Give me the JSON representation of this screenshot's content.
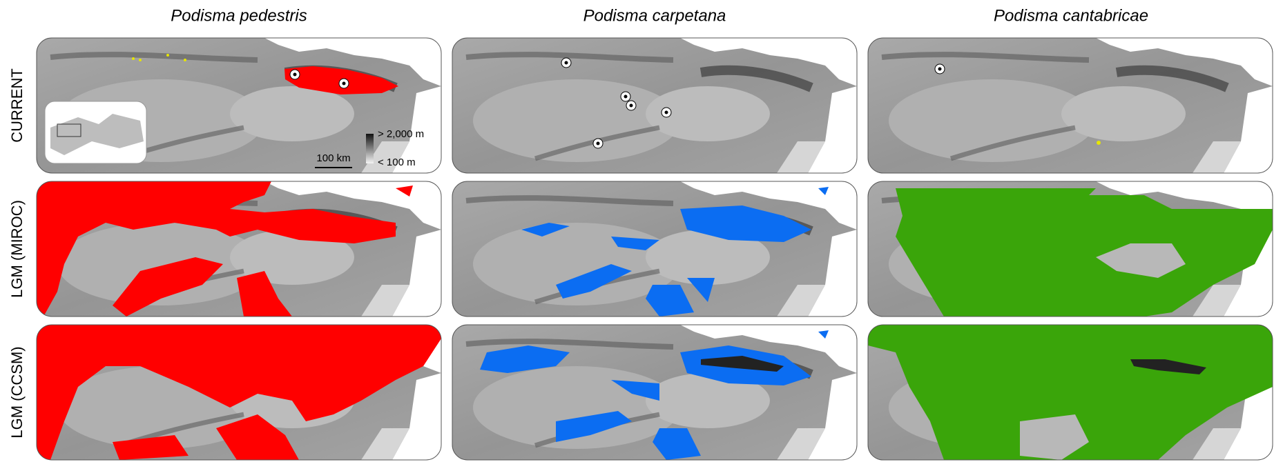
{
  "column_titles": [
    "Podisma pedestris",
    "Podisma carpetana",
    "Podisma cantabricae"
  ],
  "row_labels": [
    "CURRENT",
    "LGM (MIROC)",
    "LGM (CCSM)"
  ],
  "legend": {
    "high": "> 2,000 m",
    "low": "< 100 m"
  },
  "scale_bar": "100 km"
}
